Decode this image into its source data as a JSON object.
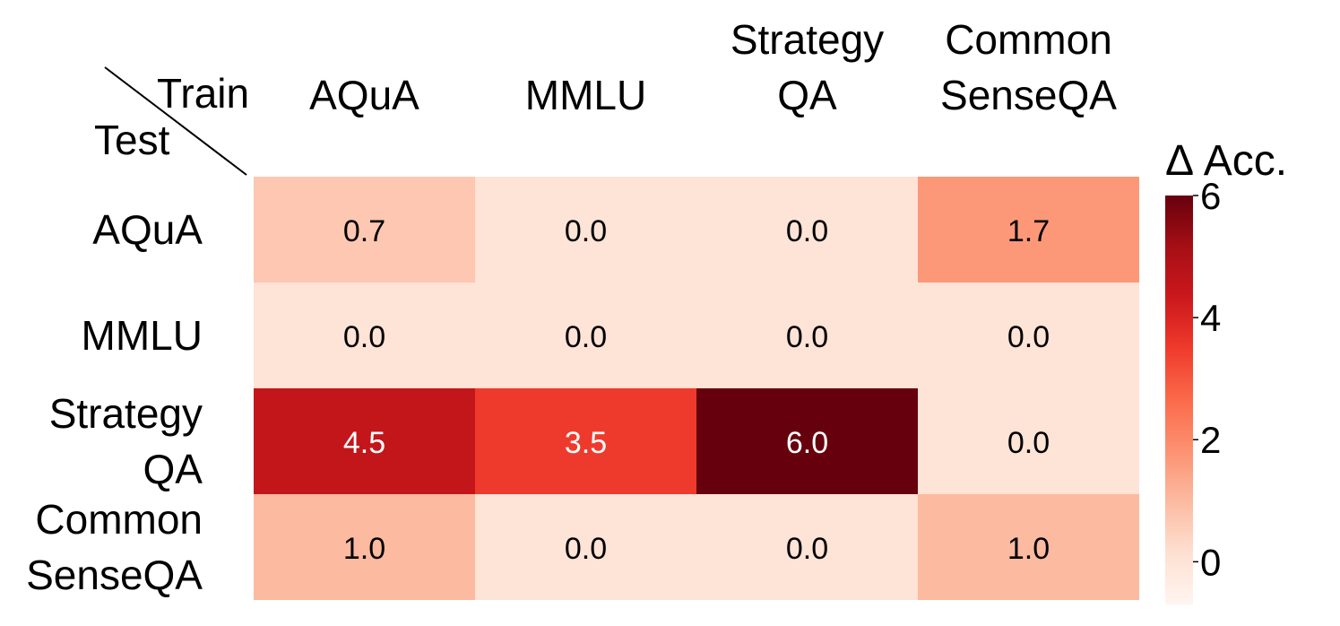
{
  "chart_data": {
    "type": "heatmap",
    "corner_labels": {
      "columns": "Train",
      "rows": "Test"
    },
    "columns": [
      [
        "AQuA"
      ],
      [
        "MMLU"
      ],
      [
        "Strategy",
        "QA"
      ],
      [
        "Common",
        "SenseQA"
      ]
    ],
    "rows": [
      [
        "AQuA"
      ],
      [
        "MMLU"
      ],
      [
        "Strategy",
        "QA"
      ],
      [
        "Common",
        "SenseQA"
      ]
    ],
    "values": [
      [
        0.7,
        0.0,
        0.0,
        1.7
      ],
      [
        0.0,
        0.0,
        0.0,
        0.0
      ],
      [
        4.5,
        3.5,
        6.0,
        0.0
      ],
      [
        1.0,
        0.0,
        0.0,
        1.0
      ]
    ],
    "value_labels": [
      [
        "0.7",
        "0.0",
        "0.0",
        "1.7"
      ],
      [
        "0.0",
        "0.0",
        "0.0",
        "0.0"
      ],
      [
        "4.5",
        "3.5",
        "6.0",
        "0.0"
      ],
      [
        "1.0",
        "0.0",
        "0.0",
        "1.0"
      ]
    ],
    "colorbar": {
      "title": "Δ Acc.",
      "range": [
        -0.7,
        6
      ],
      "ticks": [
        0,
        2,
        4,
        6
      ],
      "colormap": "Reds",
      "colors": [
        "#fff5f0",
        "#fee0d2",
        "#fcbba1",
        "#fc9272",
        "#fb6a4a",
        "#ef3b2c",
        "#cb181d",
        "#a50f15",
        "#67000d"
      ]
    }
  }
}
